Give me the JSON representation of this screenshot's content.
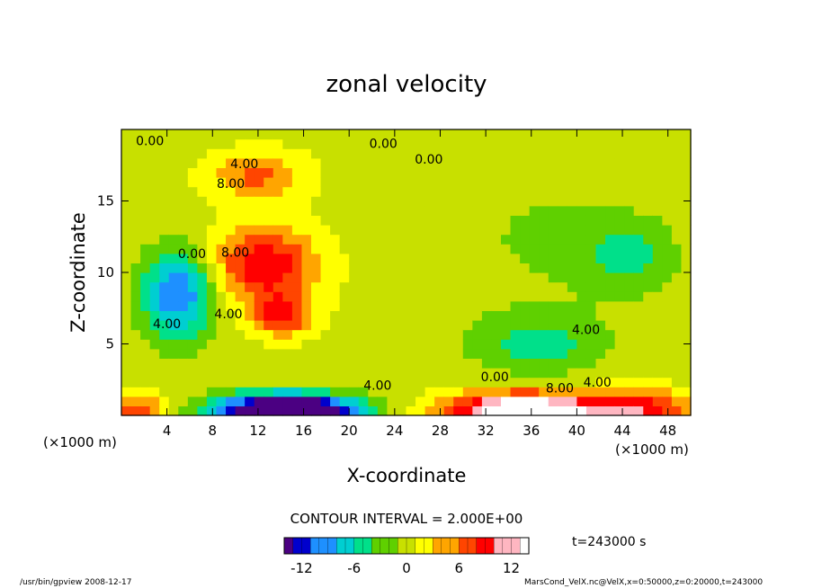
{
  "chart_data": {
    "type": "heatmap",
    "title": "zonal velocity",
    "xlabel": "X-coordinate",
    "ylabel": "Z-coordinate",
    "x_unit": "(×1000 m)",
    "y_unit": "(×1000 m)",
    "xlim": [
      0,
      50
    ],
    "ylim": [
      0,
      20
    ],
    "x_ticks": [
      4,
      8,
      12,
      16,
      20,
      24,
      28,
      32,
      36,
      40,
      44,
      48
    ],
    "y_ticks": [
      5,
      10,
      15
    ],
    "contour_interval_text": "CONTOUR INTERVAL = 2.000E+00",
    "time_text": "t=243000 s",
    "colorbar": {
      "range": [
        -14,
        14
      ],
      "ticks": [
        -12,
        -6,
        0,
        6,
        12
      ],
      "colors": [
        "#4b0082",
        "#0000cd",
        "#1e90ff",
        "#00ced1",
        "#00e08a",
        "#5fd000",
        "#c8e000",
        "#ffff00",
        "#ffa500",
        "#ff4500",
        "#ff0000",
        "#ffb6c1",
        "#ffffff"
      ]
    },
    "contour_labels": [
      {
        "text": "0.00",
        "x": 2.5,
        "y": 18.9
      },
      {
        "text": "0.00",
        "x": 23.0,
        "y": 18.7
      },
      {
        "text": "0.00",
        "x": 27.0,
        "y": 17.6
      },
      {
        "text": "4.00",
        "x": 10.8,
        "y": 17.3
      },
      {
        "text": "8.00",
        "x": 9.6,
        "y": 15.9
      },
      {
        "text": "0.00",
        "x": 6.2,
        "y": 11.0
      },
      {
        "text": "8.00",
        "x": 10.0,
        "y": 11.1
      },
      {
        "text": "4.00",
        "x": 9.4,
        "y": 6.8
      },
      {
        "text": "4.00",
        "x": 4.0,
        "y": 6.1
      },
      {
        "text": "4.00",
        "x": 22.5,
        "y": 1.8
      },
      {
        "text": "0.00",
        "x": 32.8,
        "y": 2.4
      },
      {
        "text": "8.00",
        "x": 38.5,
        "y": 1.6
      },
      {
        "text": "4.00",
        "x": 41.8,
        "y": 2.0
      },
      {
        "text": "4.00",
        "x": 40.8,
        "y": 5.7
      }
    ],
    "features": [
      {
        "x": 12.5,
        "z": 10.5,
        "u": 10,
        "sx": 4.5,
        "sz": 2.6
      },
      {
        "x": 14.2,
        "z": 7.0,
        "u": 8,
        "sx": 2.6,
        "sz": 1.4
      },
      {
        "x": 12.0,
        "z": 16.8,
        "u": 6,
        "sx": 4.0,
        "sz": 1.6
      },
      {
        "x": 5.0,
        "z": 8.5,
        "u": -11,
        "sx": 3.2,
        "sz": 3.2
      },
      {
        "x": 14.5,
        "z": 0.3,
        "u": -24,
        "sx": 6.0,
        "sz": 1.2
      },
      {
        "x": 35.5,
        "z": 0.3,
        "u": 18,
        "sx": 6.5,
        "sz": 1.3
      },
      {
        "x": 45.5,
        "z": 0.6,
        "u": 9,
        "sx": 4.5,
        "sz": 1.2
      },
      {
        "x": 36.5,
        "z": 5.0,
        "u": -5,
        "sx": 6.0,
        "sz": 2.2
      },
      {
        "x": 44.5,
        "z": 11.0,
        "u": -4,
        "sx": 4.0,
        "sz": 2.5
      },
      {
        "x": 38.0,
        "z": 12.5,
        "u": -2,
        "sx": 10.0,
        "sz": 5.0
      },
      {
        "x": 1.5,
        "z": 0.4,
        "u": 7,
        "sx": 2.5,
        "sz": 1.0
      }
    ]
  },
  "footer": {
    "left": "/usr/bin/gpview  2008-12-17",
    "right": "MarsCond_VelX.nc@VelX,x=0:50000,z=0:20000,t=243000"
  }
}
